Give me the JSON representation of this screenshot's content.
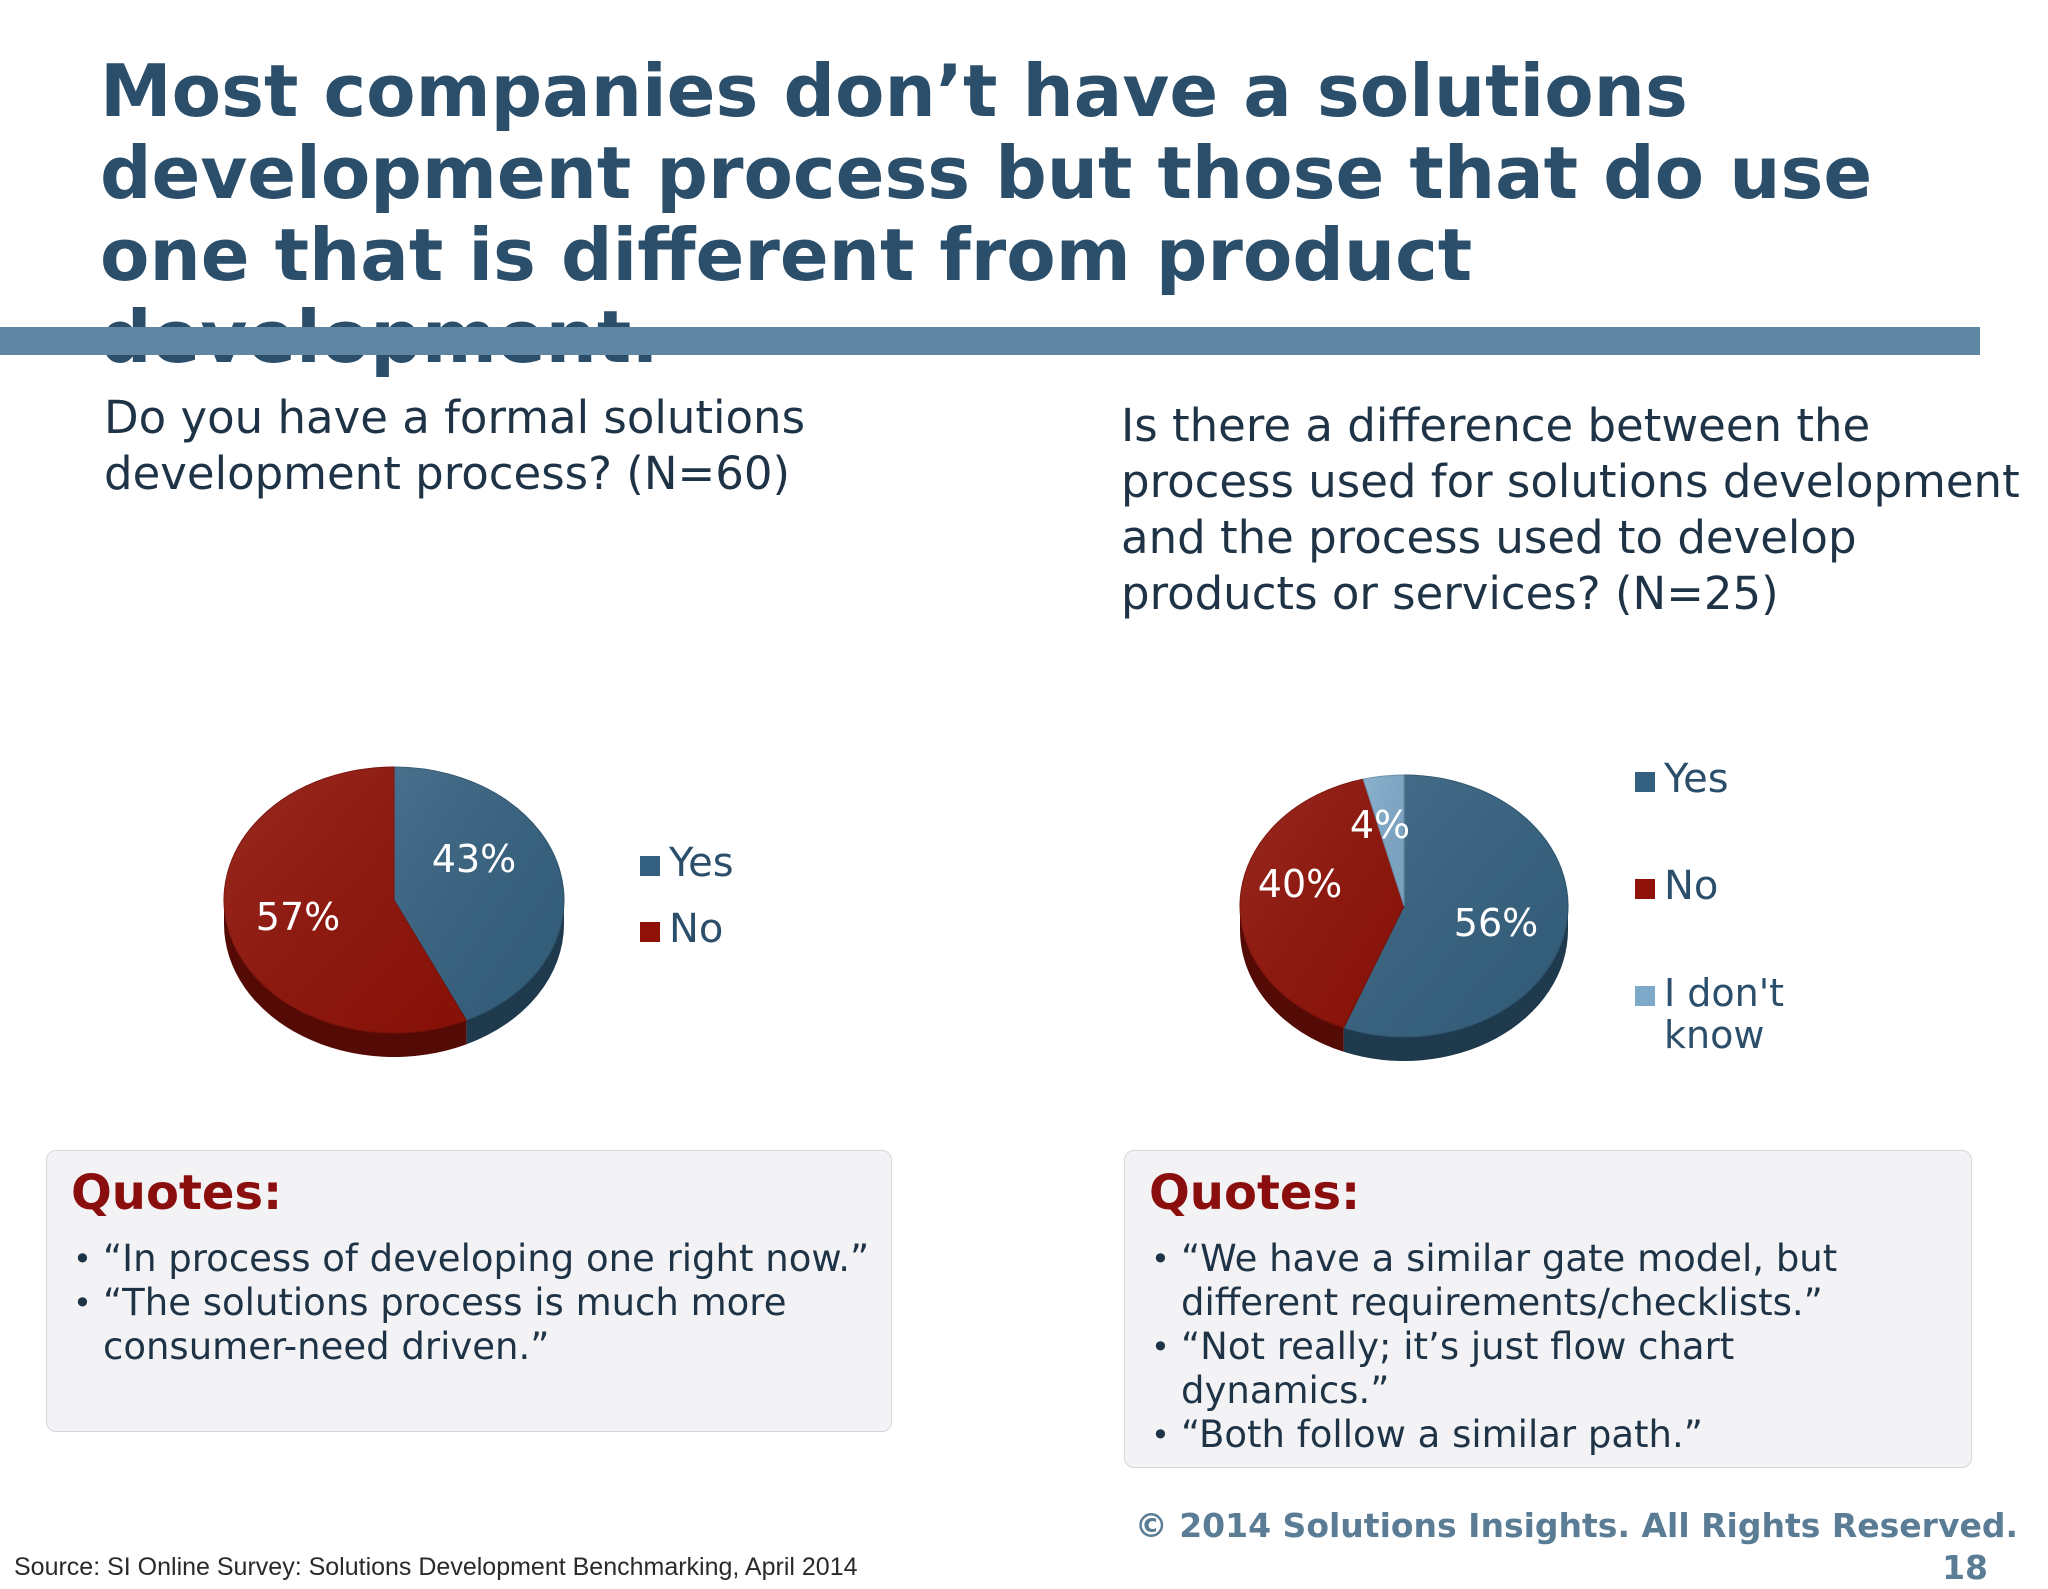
{
  "slide": {
    "title": "Most companies don’t have a solutions development process but those that do use one that is different from product development.",
    "source": "Source: SI Online Survey: Solutions Development Benchmarking, April 2014",
    "copyright": "© 2014 Solutions Insights. All Rights Reserved.",
    "page_number": "18"
  },
  "left": {
    "question": "Do you have a formal solutions development process? (N=60)",
    "quotes_title": "Quotes:",
    "quotes": [
      "“In process of developing one right now.”",
      "“The solutions process is much more consumer-need driven.”"
    ]
  },
  "right": {
    "question": "Is there a difference between the process used for solutions development and the process used to develop products or services? (N=25)",
    "quotes_title": "Quotes:",
    "quotes": [
      "“We have a similar gate model, but different requirements/checklists.”",
      "“Not really; it’s just flow chart dynamics.”",
      "“Both follow a similar path.”"
    ]
  },
  "chart_data": [
    {
      "type": "pie",
      "title": "",
      "categories": [
        "Yes",
        "No"
      ],
      "values": [
        43,
        57
      ],
      "labels": [
        "43%",
        "57%"
      ],
      "colors": [
        "#34607f",
        "#8e1208"
      ],
      "legend": "right"
    },
    {
      "type": "pie",
      "title": "",
      "categories": [
        "Yes",
        "No",
        "I don't know"
      ],
      "values": [
        56,
        40,
        4
      ],
      "labels": [
        "56%",
        "40%",
        "4%"
      ],
      "colors": [
        "#34607f",
        "#8e1208",
        "#7ea9c8"
      ],
      "legend": "right"
    }
  ]
}
